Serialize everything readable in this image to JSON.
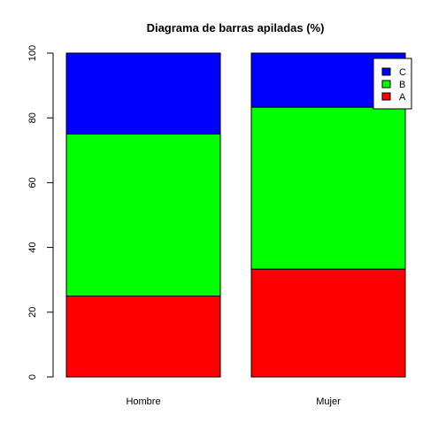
{
  "chart_data": {
    "type": "bar",
    "stacked": true,
    "title": "Diagrama de barras apiladas (%)",
    "xlabel": "",
    "ylabel": "",
    "categories": [
      "Hombre",
      "Mujer"
    ],
    "series": [
      {
        "name": "A",
        "values": [
          25,
          33.3
        ],
        "color": "#ff0000"
      },
      {
        "name": "B",
        "values": [
          50,
          50
        ],
        "color": "#00ff00"
      },
      {
        "name": "C",
        "values": [
          25,
          16.7
        ],
        "color": "#0000ff"
      }
    ],
    "ylim": [
      0,
      100
    ],
    "yticks": [
      0,
      20,
      40,
      60,
      80,
      100
    ],
    "grid": false,
    "legend_position": "top-right",
    "legend_order": [
      "C",
      "B",
      "A"
    ]
  }
}
